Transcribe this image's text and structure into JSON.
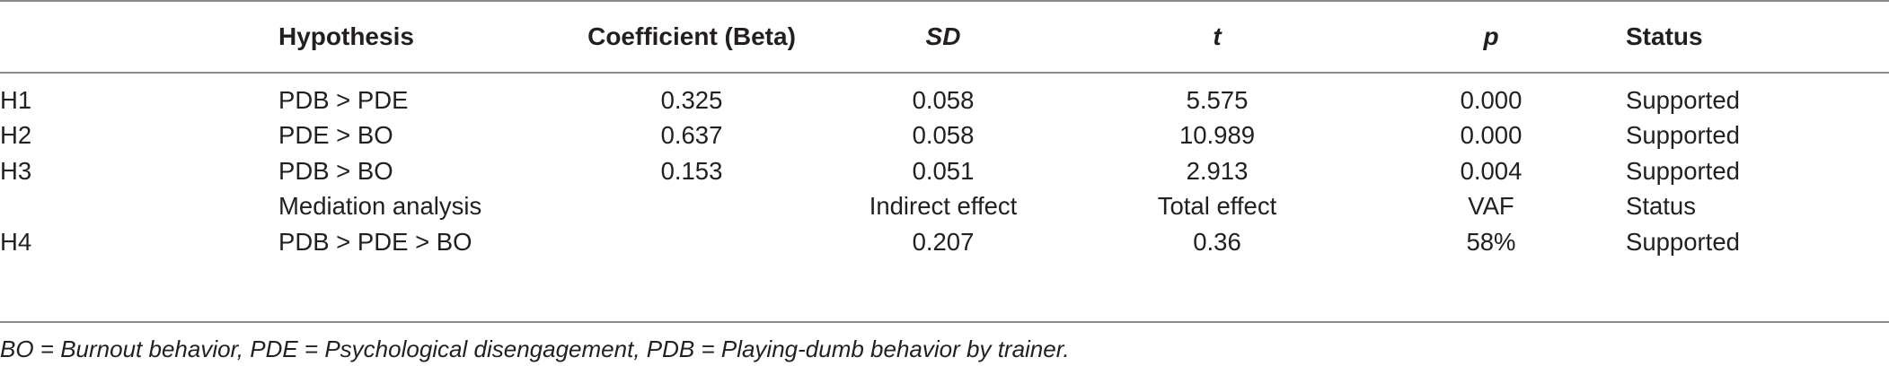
{
  "table": {
    "headers": [
      "",
      "Hypothesis",
      "Coefficient (Beta)",
      "SD",
      "t",
      "p",
      "Status"
    ],
    "rows": [
      [
        "H1",
        "PDB > PDE",
        "0.325",
        "0.058",
        "5.575",
        "0.000",
        "Supported"
      ],
      [
        "H2",
        "PDE > BO",
        "0.637",
        "0.058",
        "10.989",
        "0.000",
        "Supported"
      ],
      [
        "H3",
        "PDB > BO",
        "0.153",
        "0.051",
        "2.913",
        "0.004",
        "Supported"
      ],
      [
        "",
        "Mediation analysis",
        "",
        "Indirect effect",
        "Total effect",
        "VAF",
        "Status"
      ],
      [
        "H4",
        "PDB > PDE > BO",
        "",
        "0.207",
        "0.36",
        "58%",
        "Supported"
      ]
    ]
  },
  "footnote": "BO = Burnout behavior, PDE = Psychological disengagement, PDB = Playing-dumb behavior by trainer."
}
